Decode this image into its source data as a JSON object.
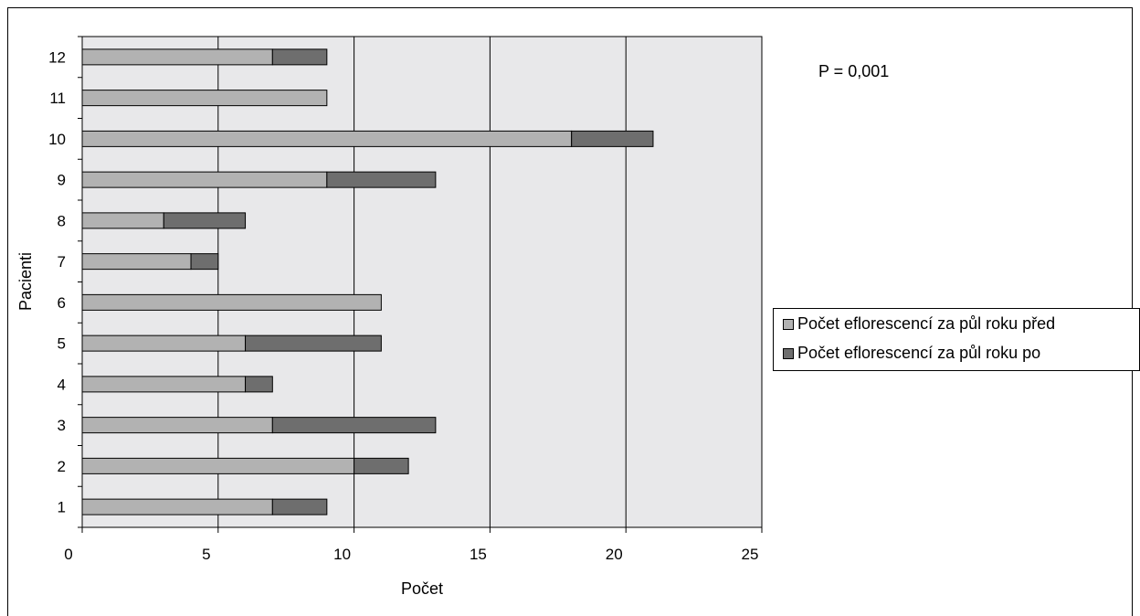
{
  "chart_data": {
    "type": "bar",
    "orientation": "horizontal",
    "stacked": true,
    "categories": [
      "1",
      "2",
      "3",
      "4",
      "5",
      "6",
      "7",
      "8",
      "9",
      "10",
      "11",
      "12"
    ],
    "series": [
      {
        "name": "Počet eflorescencí za půl roku před",
        "values": [
          7,
          10,
          7,
          6,
          6,
          11,
          4,
          3,
          9,
          18,
          9,
          7
        ],
        "color": "#b2b2b2"
      },
      {
        "name": "Počet eflorescencí za půl roku po",
        "values": [
          2,
          2,
          6,
          1,
          5,
          0,
          1,
          3,
          4,
          3,
          0,
          2
        ],
        "color": "#6e6e6e"
      }
    ],
    "xlabel": "Počet",
    "ylabel": "Pacienti",
    "xlim": [
      0,
      25
    ],
    "xticks": [
      "0",
      "5",
      "10",
      "15",
      "20",
      "25"
    ],
    "grid": "vertical",
    "legend_position": "right",
    "plot_background": "#e8e8ea",
    "annotation": "P = 0,001"
  }
}
